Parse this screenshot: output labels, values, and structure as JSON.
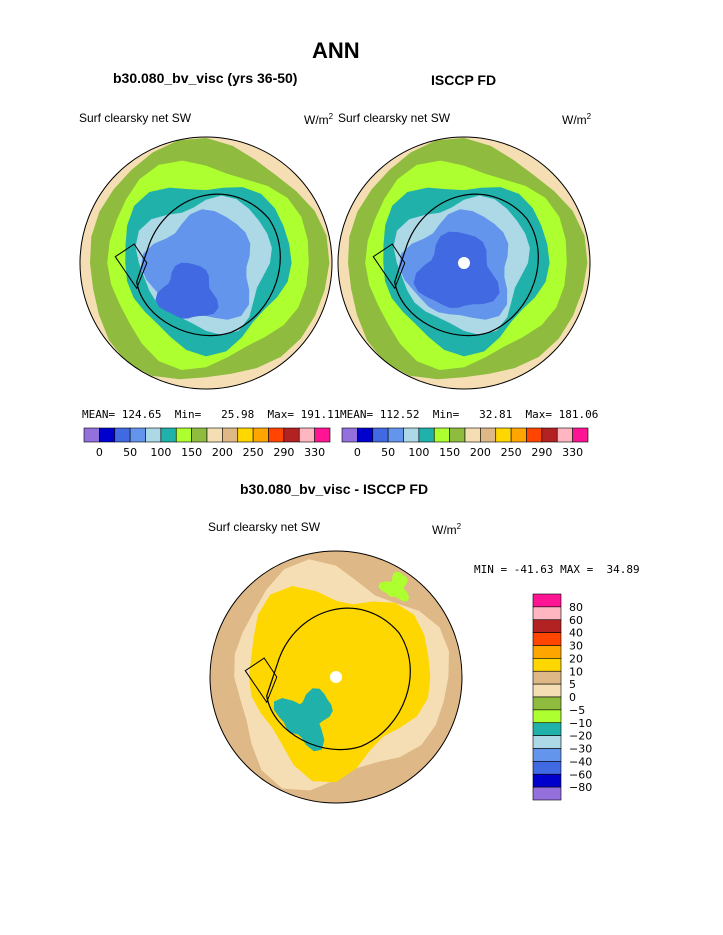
{
  "page_title": "ANN",
  "colors": {
    "abs_scale": [
      "#9370db",
      "#0000cd",
      "#4169e1",
      "#6495ed",
      "#add8e6",
      "#20b2aa",
      "#adff2f",
      "#8fbc3f",
      "#f5deb3",
      "#deb887",
      "#ffd700",
      "#ffa500",
      "#ff4500",
      "#b22222",
      "#ffb6c1",
      "#ff1493"
    ],
    "diff_scale": [
      "#9370db",
      "#0000cd",
      "#4169e1",
      "#6495ed",
      "#add8e6",
      "#20b2aa",
      "#adff2f",
      "#8fbc3f",
      "#f5deb3",
      "#deb887",
      "#ffd700",
      "#ffa500",
      "#ff4500",
      "#b22222",
      "#ffb6c1",
      "#ff1493"
    ]
  },
  "chart_data": [
    {
      "type": "heatmap",
      "title": "b30.080_bv_visc (yrs 36-50)",
      "variable": "Surf clearsky net SW",
      "units": "W/m",
      "units_exp": "2",
      "stats": {
        "mean_label": "MEAN=",
        "mean": "124.65",
        "min_label": "Min=",
        "min": "25.98",
        "max_label": "Max=",
        "max": "191.11"
      },
      "colorbar_ticks": [
        "0",
        "50",
        "100",
        "150",
        "200",
        "250",
        "290",
        "330"
      ]
    },
    {
      "type": "heatmap",
      "title": "ISCCP FD",
      "variable": "Surf clearsky net SW",
      "units": "W/m",
      "units_exp": "2",
      "stats": {
        "mean_label": "MEAN=",
        "mean": "112.52",
        "min_label": "Min=",
        "min": "32.81",
        "max_label": "Max=",
        "max": "181.06"
      },
      "colorbar_ticks": [
        "0",
        "50",
        "100",
        "150",
        "200",
        "250",
        "290",
        "330"
      ]
    },
    {
      "type": "heatmap",
      "title": "b30.080_bv_visc - ISCCP FD",
      "variable": "Surf clearsky net SW",
      "units": "W/m",
      "units_exp": "2",
      "stats_text": "MIN = -41.63 MAX =  34.89",
      "colorbar_ticks": [
        "80",
        "60",
        "40",
        "30",
        "20",
        "10",
        "5",
        "0",
        "−5",
        "−10",
        "−20",
        "−30",
        "−40",
        "−60",
        "−80"
      ]
    }
  ]
}
